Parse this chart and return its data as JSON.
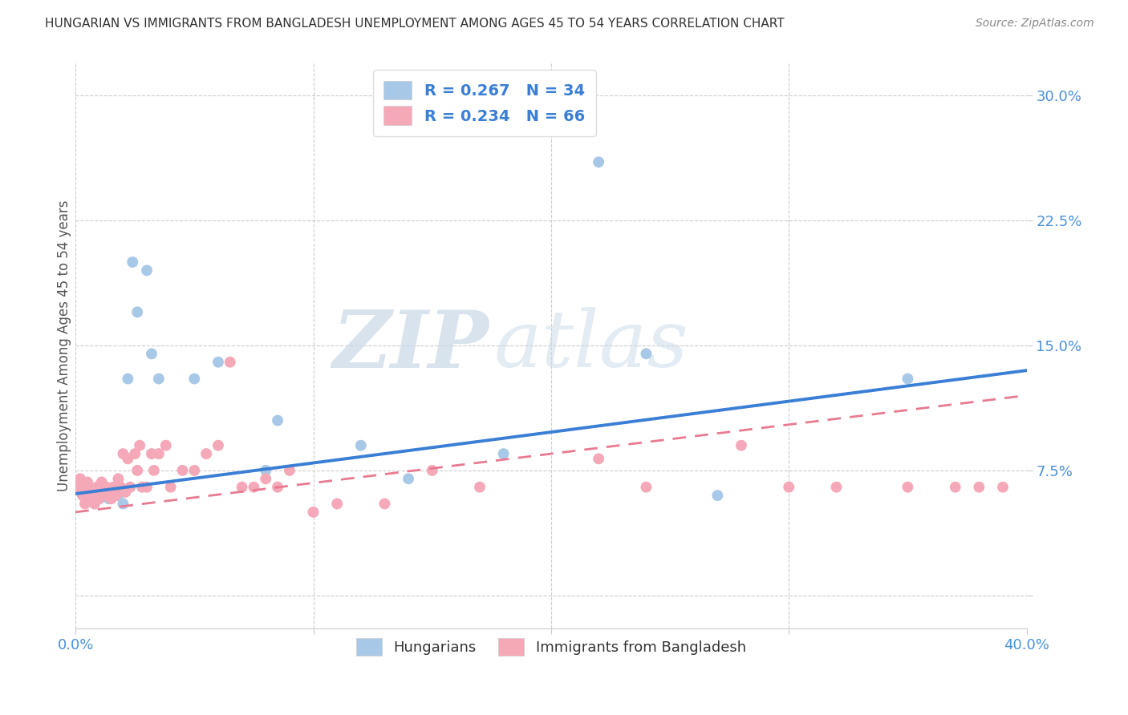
{
  "title": "HUNGARIAN VS IMMIGRANTS FROM BANGLADESH UNEMPLOYMENT AMONG AGES 45 TO 54 YEARS CORRELATION CHART",
  "source": "Source: ZipAtlas.com",
  "ylabel": "Unemployment Among Ages 45 to 54 years",
  "xlim": [
    0.0,
    0.4
  ],
  "ylim": [
    -0.02,
    0.32
  ],
  "xticks": [
    0.0,
    0.1,
    0.2,
    0.3,
    0.4
  ],
  "yticks": [
    0.0,
    0.075,
    0.15,
    0.225,
    0.3
  ],
  "background_color": "#ffffff",
  "watermark_zip": "ZIP",
  "watermark_atlas": "atlas",
  "hungarian_color": "#a8c8e8",
  "bangladesh_color": "#f4a8b8",
  "line_hungarian_color": "#3a7fd5",
  "line_bangladesh_color": "#e87a90",
  "R_hungarian": 0.267,
  "N_hungarian": 34,
  "R_bangladesh": 0.234,
  "N_bangladesh": 66,
  "h_line_x0": 0.0,
  "h_line_y0": 0.061,
  "h_line_x1": 0.4,
  "h_line_y1": 0.135,
  "b_line_x0": 0.0,
  "b_line_y0": 0.05,
  "b_line_x1": 0.4,
  "b_line_y1": 0.12,
  "hungarian_x": [
    0.003,
    0.005,
    0.006,
    0.007,
    0.008,
    0.009,
    0.01,
    0.011,
    0.012,
    0.013,
    0.014,
    0.015,
    0.016,
    0.017,
    0.018,
    0.019,
    0.02,
    0.022,
    0.024,
    0.026,
    0.03,
    0.032,
    0.035,
    0.05,
    0.06,
    0.08,
    0.085,
    0.12,
    0.14,
    0.18,
    0.22,
    0.24,
    0.27,
    0.35
  ],
  "hungarian_y": [
    0.06,
    0.063,
    0.058,
    0.057,
    0.06,
    0.062,
    0.058,
    0.06,
    0.062,
    0.06,
    0.058,
    0.06,
    0.063,
    0.06,
    0.06,
    0.062,
    0.055,
    0.13,
    0.2,
    0.17,
    0.195,
    0.145,
    0.13,
    0.13,
    0.14,
    0.075,
    0.105,
    0.09,
    0.07,
    0.085,
    0.26,
    0.145,
    0.06,
    0.13
  ],
  "bangladesh_x": [
    0.001,
    0.002,
    0.003,
    0.004,
    0.004,
    0.005,
    0.005,
    0.006,
    0.006,
    0.007,
    0.007,
    0.008,
    0.008,
    0.009,
    0.009,
    0.01,
    0.01,
    0.011,
    0.011,
    0.012,
    0.013,
    0.013,
    0.014,
    0.015,
    0.016,
    0.017,
    0.018,
    0.019,
    0.02,
    0.021,
    0.022,
    0.023,
    0.025,
    0.026,
    0.027,
    0.028,
    0.03,
    0.032,
    0.033,
    0.035,
    0.038,
    0.04,
    0.045,
    0.05,
    0.055,
    0.06,
    0.065,
    0.07,
    0.075,
    0.08,
    0.085,
    0.09,
    0.1,
    0.11,
    0.13,
    0.15,
    0.17,
    0.22,
    0.24,
    0.28,
    0.3,
    0.32,
    0.35,
    0.37,
    0.38,
    0.39
  ],
  "bangladesh_y": [
    0.065,
    0.07,
    0.06,
    0.055,
    0.062,
    0.06,
    0.068,
    0.058,
    0.065,
    0.063,
    0.06,
    0.055,
    0.062,
    0.06,
    0.065,
    0.058,
    0.062,
    0.06,
    0.068,
    0.063,
    0.06,
    0.065,
    0.062,
    0.058,
    0.065,
    0.06,
    0.07,
    0.065,
    0.085,
    0.062,
    0.082,
    0.065,
    0.085,
    0.075,
    0.09,
    0.065,
    0.065,
    0.085,
    0.075,
    0.085,
    0.09,
    0.065,
    0.075,
    0.075,
    0.085,
    0.09,
    0.14,
    0.065,
    0.065,
    0.07,
    0.065,
    0.075,
    0.05,
    0.055,
    0.055,
    0.075,
    0.065,
    0.082,
    0.065,
    0.09,
    0.065,
    0.065,
    0.065,
    0.065,
    0.065,
    0.065
  ]
}
